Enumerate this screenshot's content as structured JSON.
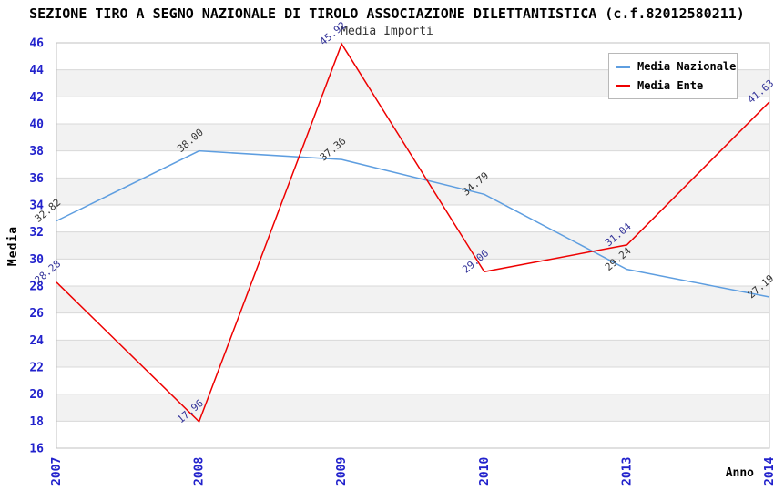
{
  "title": "SEZIONE TIRO A SEGNO NAZIONALE DI TIROLO ASSOCIAZIONE DILETTANTISTICA (c.f.82012580211)",
  "subtitle": "Media Importi",
  "axes": {
    "y_label": "Media",
    "x_label": "Anno"
  },
  "legend": {
    "position": "top-right",
    "items": [
      {
        "label": "Media Nazionale",
        "color": "#5e9ee0"
      },
      {
        "label": "Media Ente",
        "color": "#ee0000"
      }
    ]
  },
  "colors": {
    "axis_text": "#2222cc",
    "band": "#f2f2f2",
    "gridline": "#d8d8d8",
    "border": "#c0c0c0",
    "title": "#000000",
    "subtitle": "#333333"
  },
  "chart_data": {
    "type": "line",
    "title": "SEZIONE TIRO A SEGNO NAZIONALE DI TIROLO ASSOCIAZIONE DILETTANTISTICA (c.f.82012580211)",
    "subtitle": "Media Importi",
    "xlabel": "Anno",
    "ylabel": "Media",
    "categories": [
      "2007",
      "2008",
      "2009",
      "2010",
      "2013",
      "2014"
    ],
    "series": [
      {
        "name": "Media Nazionale",
        "color": "#5e9ee0",
        "label_color": "#333333",
        "values": [
          32.82,
          38.0,
          37.36,
          34.79,
          29.24,
          27.19
        ]
      },
      {
        "name": "Media Ente",
        "color": "#ee0000",
        "label_color": "#333399",
        "values": [
          28.28,
          17.96,
          45.92,
          29.06,
          31.04,
          41.63
        ]
      }
    ],
    "ylim": [
      16,
      46
    ],
    "ytick_step": 2,
    "grid": "horizontal-bands-alternating",
    "legend_position": "top-right"
  }
}
